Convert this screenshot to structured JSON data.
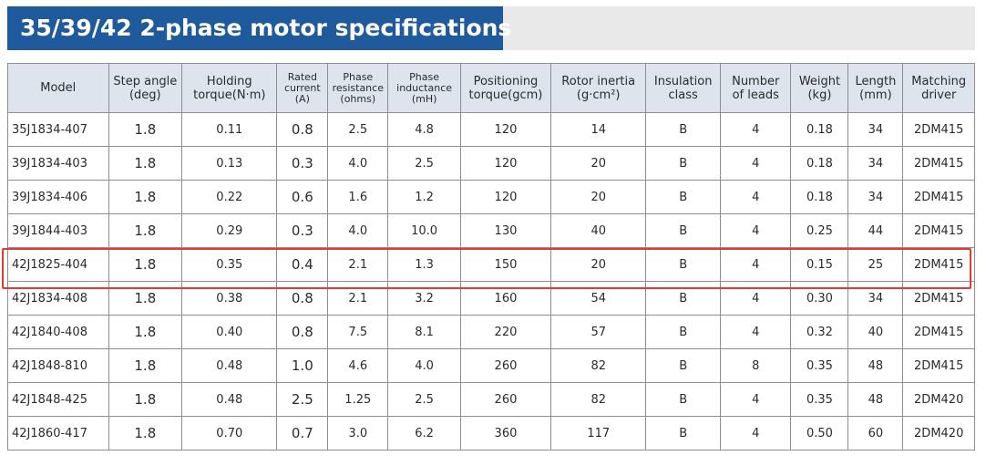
{
  "title": "35/39/42 2-phase motor specifications",
  "columns": [
    [
      "Model"
    ],
    [
      "Step angle",
      "(deg)"
    ],
    [
      "Holding",
      "torque(N·m)"
    ],
    [
      "Rated",
      "current",
      "(A)"
    ],
    [
      "Phase",
      "resistance",
      "(ohms)"
    ],
    [
      "Phase",
      "inductance",
      "(mH)"
    ],
    [
      "Positioning",
      "torque(gcm)"
    ],
    [
      "Rotor inertia",
      "(g·cm²)"
    ],
    [
      "Insulation",
      "class"
    ],
    [
      "Number",
      "of leads"
    ],
    [
      "Weight",
      "(kg)"
    ],
    [
      "Length",
      "(mm)"
    ],
    [
      "Matching",
      "driver"
    ]
  ],
  "rows": [
    [
      "35J1834-407",
      "1.8",
      "0.11",
      "0.8",
      "2.5",
      "4.8",
      "120",
      "14",
      "B",
      "4",
      "0.18",
      "34",
      "2DM415"
    ],
    [
      "39J1834-403",
      "1.8",
      "0.13",
      "0.3",
      "4.0",
      "2.5",
      "120",
      "20",
      "B",
      "4",
      "0.18",
      "34",
      "2DM415"
    ],
    [
      "39J1834-406",
      "1.8",
      "0.22",
      "0.6",
      "1.6",
      "1.2",
      "120",
      "20",
      "B",
      "4",
      "0.18",
      "34",
      "2DM415"
    ],
    [
      "39J1844-403",
      "1.8",
      "0.29",
      "0.3",
      "4.0",
      "10.0",
      "130",
      "40",
      "B",
      "4",
      "0.25",
      "44",
      "2DM415"
    ],
    [
      "42J1825-404",
      "1.8",
      "0.35",
      "0.4",
      "2.1",
      "1.3",
      "150",
      "20",
      "B",
      "4",
      "0.15",
      "25",
      "2DM415"
    ],
    [
      "42J1834-408",
      "1.8",
      "0.38",
      "0.8",
      "2.1",
      "3.2",
      "160",
      "54",
      "B",
      "4",
      "0.30",
      "34",
      "2DM415"
    ],
    [
      "42J1840-408",
      "1.8",
      "0.40",
      "0.8",
      "7.5",
      "8.1",
      "220",
      "57",
      "B",
      "4",
      "0.32",
      "40",
      "2DM415"
    ],
    [
      "42J1848-810",
      "1.8",
      "0.48",
      "1.0",
      "4.6",
      "4.0",
      "260",
      "82",
      "B",
      "8",
      "0.35",
      "48",
      "2DM415"
    ],
    [
      "42J1848-425",
      "1.8",
      "0.48",
      "2.5",
      "1.25",
      "2.5",
      "260",
      "82",
      "B",
      "4",
      "0.35",
      "48",
      "2DM420"
    ],
    [
      "42J1860-417",
      "1.8",
      "0.70",
      "0.7",
      "3.0",
      "6.2",
      "360",
      "117",
      "B",
      "4",
      "0.50",
      "60",
      "2DM420"
    ]
  ],
  "highlighted_row": 4,
  "colors": {
    "title_bg": "#1f5a9c",
    "header_bg": "#dde4ee",
    "highlight": "#e53935"
  }
}
